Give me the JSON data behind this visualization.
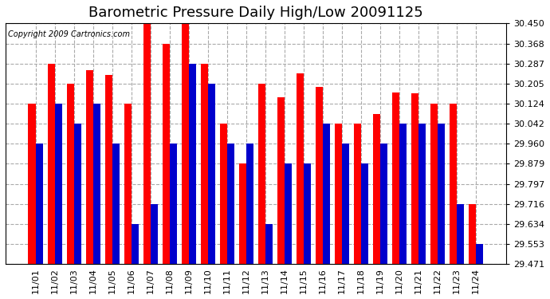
{
  "title": "Barometric Pressure Daily High/Low 20091125",
  "copyright": "Copyright 2009 Cartronics.com",
  "dates": [
    "11/01",
    "11/02",
    "11/03",
    "11/04",
    "11/05",
    "11/06",
    "11/07",
    "11/08",
    "11/09",
    "11/10",
    "11/11",
    "11/12",
    "11/13",
    "11/14",
    "11/15",
    "11/16",
    "11/17",
    "11/18",
    "11/19",
    "11/20",
    "11/21",
    "11/22",
    "11/23",
    "11/24"
  ],
  "highs": [
    30.124,
    30.287,
    30.205,
    30.26,
    30.24,
    30.124,
    30.45,
    30.368,
    30.45,
    30.287,
    30.042,
    29.879,
    30.205,
    30.15,
    30.245,
    30.19,
    30.042,
    30.042,
    30.08,
    30.17,
    30.165,
    30.124,
    30.124,
    29.716
  ],
  "lows": [
    29.96,
    30.124,
    30.042,
    30.124,
    29.96,
    29.634,
    29.716,
    29.96,
    30.287,
    30.205,
    29.96,
    29.96,
    29.634,
    29.879,
    29.879,
    30.042,
    29.96,
    29.879,
    29.96,
    30.042,
    30.042,
    30.042,
    29.716,
    29.553
  ],
  "high_color": "#ff0000",
  "low_color": "#0000cc",
  "bg_color": "#ffffff",
  "plot_bg_color": "#ffffff",
  "grid_color": "#aaaaaa",
  "title_fontsize": 13,
  "ymin": 29.471,
  "ymax": 30.45,
  "yticks": [
    29.471,
    29.553,
    29.634,
    29.716,
    29.797,
    29.879,
    29.96,
    30.042,
    30.124,
    30.205,
    30.287,
    30.368,
    30.45
  ]
}
